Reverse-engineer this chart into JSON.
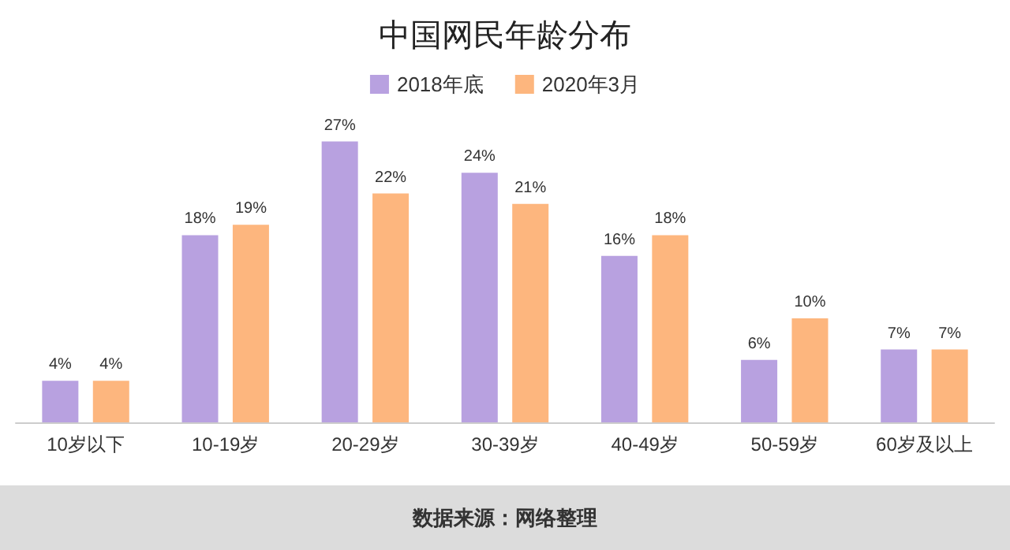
{
  "chart_data": {
    "type": "bar",
    "title": "中国网民年龄分布",
    "categories": [
      "10岁以下",
      "10-19岁",
      "20-29岁",
      "30-39岁",
      "40-49岁",
      "50-59岁",
      "60岁及以上"
    ],
    "series": [
      {
        "name": "2018年底",
        "color": "#b8a1e0",
        "values": [
          4,
          18,
          27,
          24,
          16,
          6,
          7
        ],
        "value_labels": [
          "4%",
          "18%",
          "27%",
          "24%",
          "16%",
          "6%",
          "7%"
        ]
      },
      {
        "name": "2020年3月",
        "color": "#fdb67e",
        "values": [
          4,
          19,
          22,
          21,
          18,
          10,
          7
        ],
        "value_labels": [
          "4%",
          "19%",
          "22%",
          "21%",
          "18%",
          "10%",
          "7%"
        ]
      }
    ],
    "annotations": [
      "数据来源：网络整理"
    ],
    "legend": "top",
    "grid": false
  }
}
